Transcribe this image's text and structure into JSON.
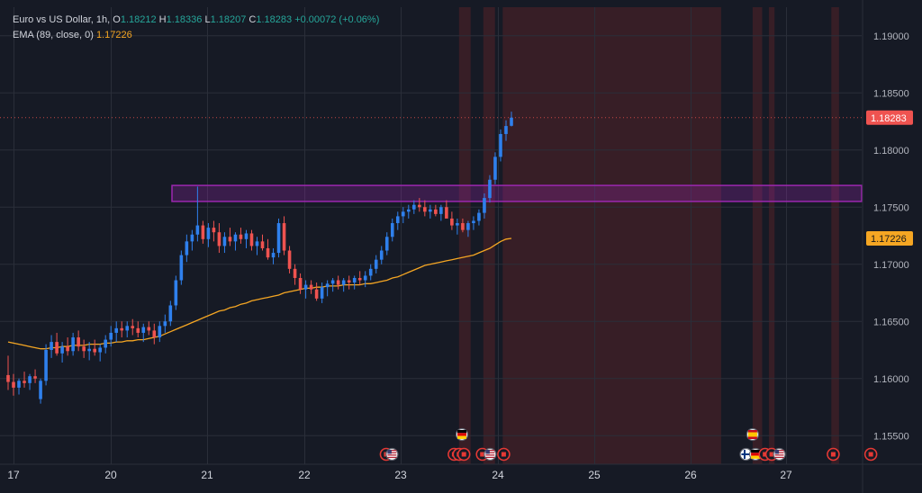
{
  "legend": {
    "symbol": "Euro vs US Dollar, 1h,",
    "open_label": "O",
    "open": "1.18212",
    "high_label": "H",
    "high": "1.18336",
    "low_label": "L",
    "low": "1.18207",
    "close_label": "C",
    "close": "1.18283",
    "change": "+0.00072 (+0.06%)",
    "ema_label": "EMA (89, close, 0)",
    "ema_value": "1.17226"
  },
  "colors": {
    "background": "#161a25",
    "grid": "#2a2e39",
    "bull": "#2f80ed",
    "bear": "#ef5350",
    "ema": "#f5a623",
    "zone": "#9c27b0",
    "session": "#3b1f27",
    "price_badge": "#ef5350",
    "ema_badge": "#f5a623"
  },
  "chart_data": {
    "type": "candlestick",
    "symbol": "EURUSD",
    "ylim": [
      1.1525,
      1.1925
    ],
    "y_ticks": [
      "1.15500",
      "1.16000",
      "1.16500",
      "1.17000",
      "1.17500",
      "1.18000",
      "1.18500",
      "1.19000"
    ],
    "x_labels": [
      "17",
      "20",
      "21",
      "22",
      "23",
      "24",
      "25",
      "26",
      "27"
    ],
    "last_price": "1.18283",
    "ema_last": "1.17226",
    "resistance_zone": [
      1.1755,
      1.1769
    ],
    "candles": [
      [
        1.1603,
        1.162,
        1.159,
        1.1597
      ],
      [
        1.1597,
        1.1604,
        1.1585,
        1.1592
      ],
      [
        1.1592,
        1.16,
        1.1586,
        1.1598
      ],
      [
        1.1598,
        1.1606,
        1.1592,
        1.1596
      ],
      [
        1.1596,
        1.1604,
        1.159,
        1.1602
      ],
      [
        1.1602,
        1.1608,
        1.1596,
        1.16
      ],
      [
        1.1582,
        1.16,
        1.1578,
        1.1598
      ],
      [
        1.1598,
        1.163,
        1.1594,
        1.1625
      ],
      [
        1.1625,
        1.1638,
        1.1618,
        1.1632
      ],
      [
        1.1632,
        1.164,
        1.162,
        1.1622
      ],
      [
        1.1622,
        1.1632,
        1.1614,
        1.1628
      ],
      [
        1.1628,
        1.1636,
        1.162,
        1.1624
      ],
      [
        1.1624,
        1.164,
        1.162,
        1.1636
      ],
      [
        1.1636,
        1.1642,
        1.1624,
        1.1628
      ],
      [
        1.1628,
        1.1634,
        1.1618,
        1.1624
      ],
      [
        1.1624,
        1.1632,
        1.1616,
        1.1626
      ],
      [
        1.1626,
        1.1634,
        1.162,
        1.1623
      ],
      [
        1.1623,
        1.163,
        1.1615,
        1.1627
      ],
      [
        1.1627,
        1.1638,
        1.1622,
        1.1634
      ],
      [
        1.1634,
        1.1646,
        1.1628,
        1.164
      ],
      [
        1.164,
        1.165,
        1.1632,
        1.1644
      ],
      [
        1.1644,
        1.165,
        1.1636,
        1.1642
      ],
      [
        1.1642,
        1.165,
        1.1636,
        1.1646
      ],
      [
        1.1646,
        1.1652,
        1.1638,
        1.1644
      ],
      [
        1.1644,
        1.165,
        1.1636,
        1.164
      ],
      [
        1.164,
        1.1648,
        1.1632,
        1.1645
      ],
      [
        1.1645,
        1.165,
        1.1638,
        1.1642
      ],
      [
        1.1642,
        1.1648,
        1.163,
        1.1636
      ],
      [
        1.1636,
        1.165,
        1.1632,
        1.1646
      ],
      [
        1.1646,
        1.1656,
        1.164,
        1.165
      ],
      [
        1.165,
        1.1668,
        1.1646,
        1.1664
      ],
      [
        1.1664,
        1.169,
        1.166,
        1.1686
      ],
      [
        1.1686,
        1.1712,
        1.1682,
        1.1708
      ],
      [
        1.1708,
        1.1726,
        1.1702,
        1.172
      ],
      [
        1.172,
        1.173,
        1.1712,
        1.1726
      ],
      [
        1.1726,
        1.1768,
        1.172,
        1.1734
      ],
      [
        1.1734,
        1.1738,
        1.1718,
        1.1722
      ],
      [
        1.1722,
        1.1736,
        1.1715,
        1.1732
      ],
      [
        1.1732,
        1.1738,
        1.172,
        1.1728
      ],
      [
        1.1728,
        1.1736,
        1.171,
        1.1716
      ],
      [
        1.1716,
        1.1728,
        1.171,
        1.1724
      ],
      [
        1.1724,
        1.1732,
        1.1716,
        1.172
      ],
      [
        1.172,
        1.1728,
        1.1712,
        1.1726
      ],
      [
        1.1726,
        1.1732,
        1.1718,
        1.1722
      ],
      [
        1.1722,
        1.173,
        1.1714,
        1.1727
      ],
      [
        1.1727,
        1.173,
        1.1712,
        1.1716
      ],
      [
        1.1716,
        1.1724,
        1.1708,
        1.172
      ],
      [
        1.172,
        1.1726,
        1.1712,
        1.1714
      ],
      [
        1.1714,
        1.1722,
        1.1704,
        1.1706
      ],
      [
        1.1706,
        1.1714,
        1.17,
        1.171
      ],
      [
        1.171,
        1.174,
        1.1706,
        1.1736
      ],
      [
        1.1736,
        1.1742,
        1.1708,
        1.1712
      ],
      [
        1.1712,
        1.1716,
        1.1692,
        1.1696
      ],
      [
        1.1696,
        1.17,
        1.1682,
        1.1688
      ],
      [
        1.1688,
        1.1692,
        1.1674,
        1.1678
      ],
      [
        1.1678,
        1.1686,
        1.167,
        1.1682
      ],
      [
        1.1682,
        1.1686,
        1.1674,
        1.1678
      ],
      [
        1.1678,
        1.1684,
        1.1668,
        1.167
      ],
      [
        1.167,
        1.1684,
        1.1666,
        1.168
      ],
      [
        1.168,
        1.1686,
        1.1672,
        1.1683
      ],
      [
        1.1683,
        1.1688,
        1.1676,
        1.1686
      ],
      [
        1.1686,
        1.169,
        1.1678,
        1.1682
      ],
      [
        1.1682,
        1.1688,
        1.1676,
        1.1686
      ],
      [
        1.1686,
        1.169,
        1.1678,
        1.1684
      ],
      [
        1.1684,
        1.169,
        1.1678,
        1.1688
      ],
      [
        1.1688,
        1.1694,
        1.1682,
        1.1686
      ],
      [
        1.1686,
        1.1694,
        1.168,
        1.169
      ],
      [
        1.169,
        1.17,
        1.1686,
        1.1696
      ],
      [
        1.1696,
        1.1708,
        1.1692,
        1.1704
      ],
      [
        1.1704,
        1.1716,
        1.17,
        1.1712
      ],
      [
        1.1712,
        1.1728,
        1.1708,
        1.1724
      ],
      [
        1.1724,
        1.174,
        1.172,
        1.1736
      ],
      [
        1.1736,
        1.1746,
        1.173,
        1.1742
      ],
      [
        1.1742,
        1.175,
        1.1736,
        1.1746
      ],
      [
        1.1746,
        1.1752,
        1.174,
        1.1748
      ],
      [
        1.1748,
        1.1756,
        1.1744,
        1.1752
      ],
      [
        1.1752,
        1.1758,
        1.1746,
        1.175
      ],
      [
        1.175,
        1.1756,
        1.1742,
        1.1746
      ],
      [
        1.1746,
        1.1752,
        1.174,
        1.1748
      ],
      [
        1.1748,
        1.1752,
        1.1742,
        1.1744
      ],
      [
        1.1744,
        1.1752,
        1.1738,
        1.175
      ],
      [
        1.175,
        1.1756,
        1.1742,
        1.174
      ],
      [
        1.174,
        1.1746,
        1.173,
        1.1734
      ],
      [
        1.1734,
        1.174,
        1.1726,
        1.1736
      ],
      [
        1.1736,
        1.174,
        1.1728,
        1.173
      ],
      [
        1.173,
        1.1738,
        1.1724,
        1.1736
      ],
      [
        1.1736,
        1.1742,
        1.173,
        1.1738
      ],
      [
        1.1738,
        1.1748,
        1.1734,
        1.1745
      ],
      [
        1.1745,
        1.1762,
        1.174,
        1.1758
      ],
      [
        1.1758,
        1.1778,
        1.1754,
        1.1774
      ],
      [
        1.1774,
        1.1798,
        1.177,
        1.1794
      ],
      [
        1.1794,
        1.1818,
        1.179,
        1.1814
      ],
      [
        1.1814,
        1.1826,
        1.1808,
        1.1821
      ],
      [
        1.18212,
        1.18336,
        1.18207,
        1.18283
      ]
    ],
    "ema": [
      1.1632,
      1.1631,
      1.163,
      1.1629,
      1.1628,
      1.1627,
      1.1626,
      1.1626,
      1.1627,
      1.1627,
      1.1628,
      1.1628,
      1.1629,
      1.1629,
      1.1629,
      1.163,
      1.163,
      1.163,
      1.1631,
      1.1631,
      1.1632,
      1.1632,
      1.1633,
      1.1633,
      1.1634,
      1.1634,
      1.1635,
      1.1636,
      1.1637,
      1.1639,
      1.1641,
      1.1643,
      1.1645,
      1.1647,
      1.1649,
      1.1651,
      1.1653,
      1.1655,
      1.1657,
      1.1659,
      1.166,
      1.1662,
      1.1663,
      1.1665,
      1.1666,
      1.1668,
      1.1669,
      1.167,
      1.1671,
      1.1672,
      1.1673,
      1.1675,
      1.1676,
      1.1677,
      1.1678,
      1.1679,
      1.1679,
      1.168,
      1.168,
      1.1681,
      1.1681,
      1.1681,
      1.1682,
      1.1682,
      1.1682,
      1.1682,
      1.1683,
      1.1683,
      1.1684,
      1.1685,
      1.1686,
      1.1688,
      1.1689,
      1.1691,
      1.1693,
      1.1695,
      1.1697,
      1.1699,
      1.17,
      1.1701,
      1.1702,
      1.1703,
      1.1704,
      1.1705,
      1.1706,
      1.1707,
      1.1708,
      1.171,
      1.1712,
      1.1714,
      1.1717,
      1.172,
      1.1722,
      1.17226
    ]
  },
  "sessions": [
    {
      "from": 23.6,
      "to": 23.72
    },
    {
      "from": 23.85,
      "to": 23.97
    },
    {
      "from": 24.05,
      "to": 26.32
    },
    {
      "from": 26.65,
      "to": 26.75
    },
    {
      "from": 26.82,
      "to": 26.88
    },
    {
      "from": 27.47,
      "to": 27.55
    }
  ],
  "events": [
    {
      "day": 22.85,
      "icon": "red-event-icon",
      "row": 2
    },
    {
      "day": 22.91,
      "icon": "us-flag-icon",
      "row": 2
    },
    {
      "day": 23.63,
      "icon": "de-flag-icon",
      "row": 1
    },
    {
      "day": 23.55,
      "icon": "red-event-icon",
      "row": 2
    },
    {
      "day": 23.6,
      "icon": "red-event-icon",
      "row": 2
    },
    {
      "day": 23.65,
      "icon": "red-event-icon",
      "row": 2
    },
    {
      "day": 23.84,
      "icon": "red-event-icon",
      "row": 2
    },
    {
      "day": 23.92,
      "icon": "us-flag-icon",
      "row": 2
    },
    {
      "day": 24.06,
      "icon": "red-event-icon",
      "row": 2
    },
    {
      "day": 26.65,
      "icon": "es-flag-icon",
      "row": 1
    },
    {
      "day": 26.58,
      "icon": "fi-flag-icon",
      "row": 2
    },
    {
      "day": 26.68,
      "icon": "de-flag-icon",
      "row": 2
    },
    {
      "day": 26.78,
      "icon": "red-event-icon",
      "row": 2
    },
    {
      "day": 26.85,
      "icon": "red-event-icon",
      "row": 2
    },
    {
      "day": 26.93,
      "icon": "us-flag-icon",
      "row": 2
    },
    {
      "day": 27.49,
      "icon": "red-event-icon",
      "row": 2
    },
    {
      "day": 27.88,
      "icon": "red-event-icon",
      "row": 2
    }
  ]
}
